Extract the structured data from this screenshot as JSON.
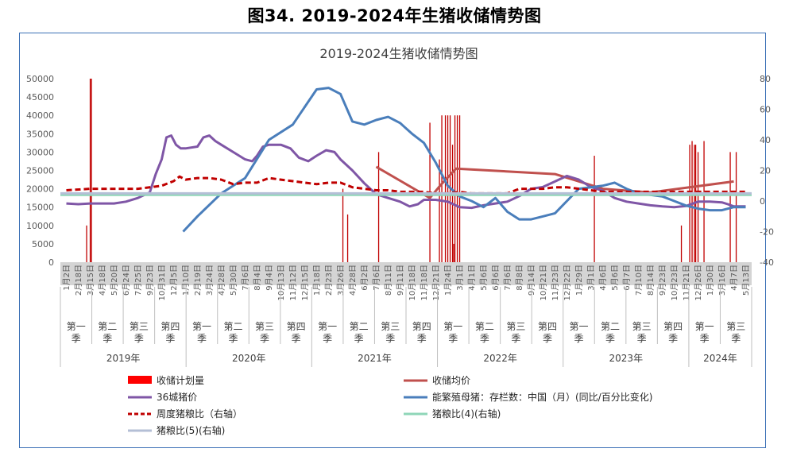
{
  "figure_title": "图34. 2019-2024年生猪收储情势图",
  "chart_data": {
    "type": "line",
    "title": "2019-2024生猪收储情势图",
    "left_axis": {
      "ticks": [
        0,
        5000,
        10000,
        15000,
        20000,
        25000,
        30000,
        35000,
        40000,
        45000,
        50000
      ],
      "ylim": [
        0,
        50000
      ]
    },
    "right_axis": {
      "ticks": [
        -40,
        -20,
        0,
        20,
        40,
        60,
        80
      ],
      "ylim": [
        -40,
        80
      ]
    },
    "x_tick_labels": [
      "1月2日",
      "2月18日",
      "3月15日",
      "4月18日",
      "5月20日",
      "6月24日",
      "7月25日",
      "9月23日",
      "10月31日",
      "12月5日",
      "1月10日",
      "2月19日",
      "3月24日",
      "4月28日",
      "5月30日",
      "7月6日",
      "8月4日",
      "9月4日",
      "10月13日",
      "11月12日",
      "12月15日",
      "1月18日",
      "2月23日",
      "3月26日",
      "4月28日",
      "6月2日",
      "7月6日",
      "8月11日",
      "9月11日",
      "10月18日",
      "11月18日",
      "12月21日",
      "1月24日",
      "3月1日",
      "4月1日",
      "5月6日",
      "6月6日",
      "7月6日",
      "8月8日",
      "9月14日",
      "10月21日",
      "11月23日",
      "12月22日",
      "1月29日",
      "3月1日",
      "4月6日",
      "5月6日",
      "6月7日",
      "7月10日",
      "8月14日",
      "9月23日",
      "10月23日",
      "11月21日",
      "12月26日",
      "1月30日",
      "3月16日",
      "4月7日",
      "5月13日"
    ],
    "quarters": [
      {
        "label": "第一季",
        "year": "2019年"
      },
      {
        "label": "第二季",
        "year": "2019年"
      },
      {
        "label": "第三季",
        "year": "2019年"
      },
      {
        "label": "第四季",
        "year": "2019年"
      },
      {
        "label": "第一季",
        "year": "2020年"
      },
      {
        "label": "第二季",
        "year": "2020年"
      },
      {
        "label": "第三季",
        "year": "2020年"
      },
      {
        "label": "第四季",
        "year": "2020年"
      },
      {
        "label": "第一季",
        "year": "2021年"
      },
      {
        "label": "第二季",
        "year": "2021年"
      },
      {
        "label": "第三季",
        "year": "2021年"
      },
      {
        "label": "第四季",
        "year": "2021年"
      },
      {
        "label": "第一季",
        "year": "2022年"
      },
      {
        "label": "第二季",
        "year": "2022年"
      },
      {
        "label": "第三季",
        "year": "2022年"
      },
      {
        "label": "第四季",
        "year": "2022年"
      },
      {
        "label": "第一季",
        "year": "2023年"
      },
      {
        "label": "第二季",
        "year": "2023年"
      },
      {
        "label": "第三季",
        "year": "2023年"
      },
      {
        "label": "第四季",
        "year": "2023年"
      },
      {
        "label": "第一季",
        "year": "2024年"
      },
      {
        "label": "第三季",
        "year": "2024年"
      }
    ],
    "years": [
      "2019年",
      "2020年",
      "2021年",
      "2022年",
      "2023年",
      "2024年"
    ],
    "series": [
      {
        "name": "收储计划量",
        "kind": "bar",
        "axis": "left",
        "color": "#c00000",
        "points": [
          [
            1.7,
            10000
          ],
          [
            2.0,
            50000
          ],
          [
            2.1,
            50000
          ],
          [
            23.2,
            20000
          ],
          [
            23.6,
            13000
          ],
          [
            26.2,
            30000
          ],
          [
            30.5,
            38000
          ],
          [
            31.3,
            28000
          ],
          [
            31.5,
            40000
          ],
          [
            31.8,
            40000
          ],
          [
            32.0,
            40000
          ],
          [
            32.2,
            40000
          ],
          [
            32.4,
            32000
          ],
          [
            32.5,
            5000
          ],
          [
            32.6,
            40000
          ],
          [
            32.8,
            40000
          ],
          [
            33.0,
            40000
          ],
          [
            44.3,
            29000
          ],
          [
            51.6,
            10000
          ],
          [
            52.3,
            32000
          ],
          [
            52.5,
            33000
          ],
          [
            52.7,
            32000
          ],
          [
            52.8,
            32000
          ],
          [
            53.0,
            30000
          ],
          [
            53.5,
            33000
          ],
          [
            55.7,
            30000
          ],
          [
            56.2,
            30000
          ]
        ]
      },
      {
        "name": "收储均价",
        "kind": "line",
        "axis": "left",
        "color": "#c0504d",
        "points": [
          [
            26.0,
            26000
          ],
          [
            30.5,
            17500
          ],
          [
            31.4,
            21000
          ],
          [
            32.7,
            25500
          ],
          [
            41.0,
            24000
          ],
          [
            45.0,
            20000
          ],
          [
            49.0,
            19000
          ],
          [
            56.0,
            22000
          ]
        ]
      },
      {
        "name": "36城猪价",
        "kind": "line",
        "axis": "left",
        "color": "#7f56a6",
        "points": [
          [
            0,
            16000
          ],
          [
            1,
            15800
          ],
          [
            2,
            16000
          ],
          [
            3,
            16000
          ],
          [
            4,
            16000
          ],
          [
            5,
            16500
          ],
          [
            6,
            17500
          ],
          [
            7,
            19000
          ],
          [
            7.5,
            24000
          ],
          [
            8,
            28000
          ],
          [
            8.4,
            34000
          ],
          [
            8.8,
            34500
          ],
          [
            9.2,
            32000
          ],
          [
            9.6,
            31000
          ],
          [
            10,
            31000
          ],
          [
            11,
            31500
          ],
          [
            11.5,
            34000
          ],
          [
            12,
            34500
          ],
          [
            12.5,
            33000
          ],
          [
            13,
            32000
          ],
          [
            14,
            30000
          ],
          [
            15,
            28000
          ],
          [
            15.6,
            27500
          ],
          [
            16,
            29000
          ],
          [
            16.5,
            31500
          ],
          [
            17,
            32000
          ],
          [
            18,
            32000
          ],
          [
            18.8,
            31000
          ],
          [
            19.5,
            28500
          ],
          [
            20.3,
            27500
          ],
          [
            21,
            29000
          ],
          [
            21.8,
            30500
          ],
          [
            22.5,
            30000
          ],
          [
            23,
            28000
          ],
          [
            24,
            25000
          ],
          [
            25,
            21500
          ],
          [
            26,
            18500
          ],
          [
            27,
            17500
          ],
          [
            28,
            16500
          ],
          [
            28.8,
            15200
          ],
          [
            29.5,
            15800
          ],
          [
            30,
            17000
          ],
          [
            31,
            17000
          ],
          [
            32,
            16500
          ],
          [
            33,
            15000
          ],
          [
            34,
            14800
          ],
          [
            35,
            15500
          ],
          [
            36,
            16000
          ],
          [
            37,
            16500
          ],
          [
            38,
            18000
          ],
          [
            39,
            20000
          ],
          [
            40,
            20500
          ],
          [
            41,
            22000
          ],
          [
            42,
            23500
          ],
          [
            43,
            22500
          ],
          [
            44,
            20500
          ],
          [
            45,
            19500
          ],
          [
            46,
            17500
          ],
          [
            47,
            16500
          ],
          [
            48,
            16000
          ],
          [
            49,
            15500
          ],
          [
            50,
            15200
          ],
          [
            51,
            15000
          ],
          [
            52,
            15300
          ],
          [
            53,
            16500
          ],
          [
            54,
            16500
          ],
          [
            55,
            16300
          ],
          [
            55.5,
            15800
          ],
          [
            56,
            15200
          ],
          [
            57,
            15200
          ]
        ]
      },
      {
        "name": "能繁殖母猪：存栏数：中国（月）(同比/百分比变化)",
        "kind": "line",
        "axis": "right",
        "color": "#4a7ebb",
        "points": [
          [
            9.8,
            -20
          ],
          [
            11,
            -10
          ],
          [
            13,
            5
          ],
          [
            15,
            15
          ],
          [
            17,
            40
          ],
          [
            19,
            50
          ],
          [
            21,
            73
          ],
          [
            22,
            74
          ],
          [
            23,
            70
          ],
          [
            24,
            52
          ],
          [
            25,
            50
          ],
          [
            26,
            53
          ],
          [
            27,
            55
          ],
          [
            28,
            51
          ],
          [
            29,
            44
          ],
          [
            30,
            38
          ],
          [
            31,
            25
          ],
          [
            32,
            10
          ],
          [
            33,
            3
          ],
          [
            34,
            0
          ],
          [
            35,
            -4
          ],
          [
            36,
            2
          ],
          [
            37,
            -7
          ],
          [
            38,
            -12
          ],
          [
            39,
            -12
          ],
          [
            40,
            -10
          ],
          [
            41,
            -8
          ],
          [
            42,
            0
          ],
          [
            43,
            8
          ],
          [
            44,
            9
          ],
          [
            45,
            10
          ],
          [
            46,
            12
          ],
          [
            47,
            8
          ],
          [
            48,
            5
          ],
          [
            49,
            4
          ],
          [
            50,
            3
          ],
          [
            51,
            0
          ],
          [
            52,
            -3
          ],
          [
            53,
            -5
          ],
          [
            54,
            -6
          ],
          [
            55,
            -6
          ],
          [
            56,
            -4
          ],
          [
            57,
            -4
          ]
        ]
      },
      {
        "name": "周度猪粮比（右轴）",
        "kind": "dashed-line",
        "axis": "right",
        "color": "#c00000",
        "points": [
          [
            0,
            7
          ],
          [
            2,
            8
          ],
          [
            4,
            8
          ],
          [
            6,
            8
          ],
          [
            8,
            10
          ],
          [
            9,
            13
          ],
          [
            9.5,
            16
          ],
          [
            10,
            14
          ],
          [
            11,
            15
          ],
          [
            12,
            15
          ],
          [
            13,
            14
          ],
          [
            14,
            11
          ],
          [
            15,
            12
          ],
          [
            16,
            12
          ],
          [
            17,
            15
          ],
          [
            18,
            14
          ],
          [
            19,
            13
          ],
          [
            20,
            12
          ],
          [
            21,
            11
          ],
          [
            22,
            12
          ],
          [
            23,
            12
          ],
          [
            24,
            9
          ],
          [
            25,
            8
          ],
          [
            26,
            7
          ],
          [
            27,
            7
          ],
          [
            28,
            6
          ],
          [
            29,
            6
          ],
          [
            30,
            6
          ],
          [
            31,
            5
          ],
          [
            32,
            5
          ],
          [
            33,
            6
          ],
          [
            34,
            5
          ],
          [
            35,
            5
          ],
          [
            36,
            5
          ],
          [
            37,
            5
          ],
          [
            38,
            8
          ],
          [
            39,
            8
          ],
          [
            40,
            8
          ],
          [
            41,
            9
          ],
          [
            42,
            9
          ],
          [
            43,
            8
          ],
          [
            44,
            7
          ],
          [
            45,
            6
          ],
          [
            46,
            6
          ],
          [
            47,
            6
          ],
          [
            48,
            6
          ],
          [
            49,
            6
          ],
          [
            50,
            6
          ],
          [
            51,
            6
          ],
          [
            52,
            6
          ],
          [
            53,
            6
          ],
          [
            54,
            6
          ],
          [
            55,
            6
          ],
          [
            56,
            6
          ],
          [
            57,
            6
          ]
        ]
      },
      {
        "name": "猪粮比(4)(右轴)",
        "kind": "line",
        "axis": "right",
        "color": "#8fd6b8",
        "value": 4
      },
      {
        "name": "猪粮比(5)(右轴)",
        "kind": "line",
        "axis": "right",
        "color": "#b4bfd6",
        "value": 5
      }
    ]
  },
  "legend": [
    {
      "label": "收储计划量",
      "color": "#ff0000",
      "style": "box"
    },
    {
      "label": "收储均价",
      "color": "#c0504d",
      "style": "line"
    },
    {
      "label": "36城猪价",
      "color": "#7f56a6",
      "style": "line"
    },
    {
      "label": "能繁殖母猪：存栏数：中国（月）(同比/百分比变化)",
      "color": "#4a7ebb",
      "style": "line"
    },
    {
      "label": "周度猪粮比（右轴）",
      "color": "#c00000",
      "style": "dash"
    },
    {
      "label": "猪粮比(4)(右轴)",
      "color": "#8fd6b8",
      "style": "line"
    },
    {
      "label": "猪粮比(5)(右轴)",
      "color": "#b4bfd6",
      "style": "line"
    }
  ]
}
